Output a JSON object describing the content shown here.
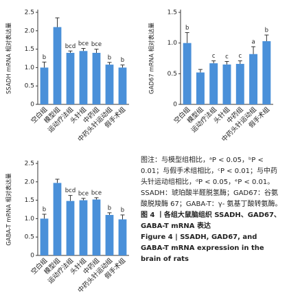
{
  "chart_data": [
    {
      "type": "bar",
      "y_label": "SSADH mRNA 相对表达量",
      "categories": [
        "空白组",
        "模型组",
        "运动疗法组",
        "头针组",
        "中药组",
        "中药头针运动组",
        "假手术组"
      ],
      "values": [
        1.0,
        2.1,
        1.4,
        1.45,
        1.4,
        1.08,
        1.0
      ],
      "errors": [
        0.15,
        0.25,
        0.05,
        0.07,
        0.1,
        0.06,
        0.07
      ],
      "significance": [
        "b",
        null,
        "bcd",
        "bce",
        "bce",
        "b",
        "b"
      ],
      "color": "#4a90d9",
      "ylim": [
        0,
        2.5
      ],
      "yticks": [
        0,
        0.5,
        {
          "value": 1,
          "label": "1.0"
        },
        1.5,
        {
          "value": 2,
          "label": "2.0"
        },
        2.5
      ]
    },
    {
      "type": "bar",
      "y_label": "GAD67 mRNA 相对表达量",
      "categories": [
        "空白组",
        "模型组",
        "运动疗法组",
        "头针组",
        "中药组",
        "中药头针运动组",
        "假手术组"
      ],
      "values": [
        1.0,
        0.52,
        0.67,
        0.65,
        0.66,
        0.82,
        1.03
      ],
      "errors": [
        0.17,
        0.05,
        0.04,
        0.05,
        0.05,
        0.12,
        0.1
      ],
      "significance": [
        "b",
        null,
        "c",
        "c",
        "c",
        "a",
        "b"
      ],
      "color": "#4a90d9",
      "ylim": [
        0,
        1.5
      ],
      "yticks": [
        0,
        0.5,
        {
          "value": 1,
          "label": "1.0"
        },
        1.5
      ]
    },
    {
      "type": "bar",
      "y_label": "GABA-T mRNA 相对表达量",
      "categories": [
        "空白组",
        "模型组",
        "运动疗法组",
        "头针组",
        "中药组",
        "中药头针运动组",
        "假手术组"
      ],
      "values": [
        1.0,
        1.97,
        1.48,
        1.5,
        1.52,
        1.1,
        0.98
      ],
      "errors": [
        0.12,
        0.1,
        0.15,
        0.05,
        0.05,
        0.06,
        0.12
      ],
      "significance": [
        "b",
        null,
        "bcd",
        "bce",
        "bce",
        "b",
        "b"
      ],
      "color": "#4a90d9",
      "ylim": [
        0,
        2.5
      ],
      "yticks": [
        0,
        0.5,
        {
          "value": 1,
          "label": "1.0"
        },
        1.5,
        {
          "value": 2,
          "label": "2.0"
        },
        2.5
      ]
    }
  ],
  "caption": {
    "note": "图注：与模型组相比，ᵃP < 0.05，ᵇP < 0.01；与假手术组相比，ᶜP < 0.01；与中药头针运动组相比，ᵈP < 0.05，ᵉP < 0.01。SSADH：琥珀酸半醛脱氢酶；GAD67：谷氨酸脱羧酶 67；GABA-T：γ- 氨基丁酸转氨酶。",
    "title_cn": "图 4 丨各组大鼠脑组织 SSADH、GAD67、GABA-T mRNA 表达",
    "title_en": "Figure 4 | SSADH, GAD67, and GABA-T mRNA expression in the brain of rats"
  }
}
